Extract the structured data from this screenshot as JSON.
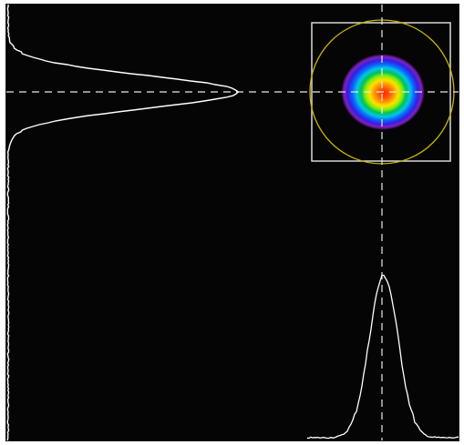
{
  "viewer": {
    "background_color": "#050505",
    "profile_color": "#ffffff",
    "crosshair_color": "#e8e8e8",
    "roi_box_color": "#d8d8d8",
    "aperture_circle_color": "#c8b400"
  },
  "beam": {
    "colormap": [
      "#ff2a00",
      "#ff7a00",
      "#ffe000",
      "#8cf000",
      "#00c060",
      "#00a0ff",
      "#2040ff",
      "#6a20c0"
    ]
  },
  "profiles": {
    "vertical_profile": "vertical-intensity-profile",
    "horizontal_profile": "horizontal-intensity-profile"
  }
}
